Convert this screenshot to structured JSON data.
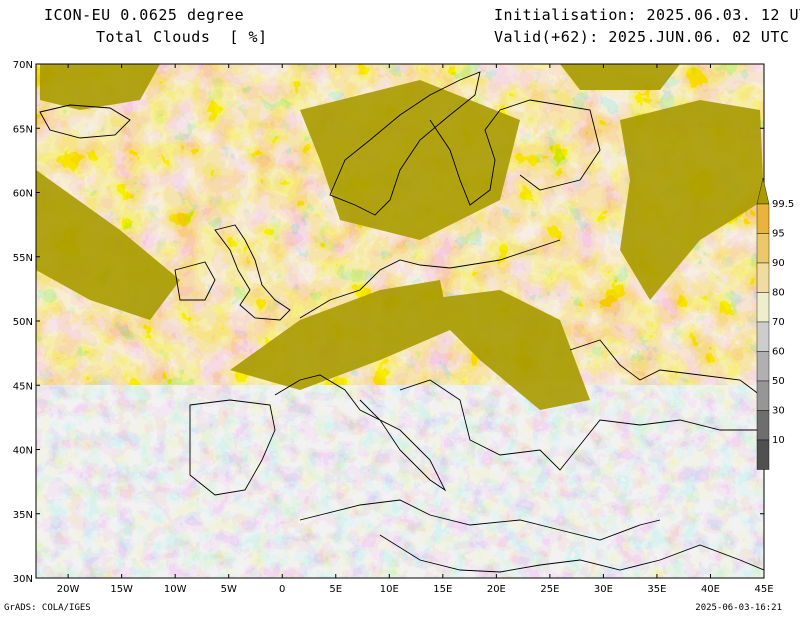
{
  "header": {
    "model": "ICON-EU 0.0625 degree",
    "field": "Total Clouds  [ %]",
    "init": "Initialisation: 2025.06.03. 12 UTC",
    "valid": "Valid(+62): 2025.JUN.06. 02 UTC"
  },
  "axes": {
    "lat_labels": [
      "70N",
      "65N",
      "60N",
      "55N",
      "50N",
      "45N",
      "40N",
      "35N",
      "30N"
    ],
    "lon_labels": [
      "20W",
      "15W",
      "10W",
      "5W",
      "0",
      "5E",
      "10E",
      "15E",
      "20E",
      "25E",
      "30E",
      "35E",
      "40E",
      "45E"
    ]
  },
  "legend": {
    "labels": [
      "99.5",
      "95",
      "90",
      "80",
      "70",
      "60",
      "50",
      "30",
      "10"
    ],
    "colors": [
      "#a89a00",
      "#e8b43c",
      "#ecc868",
      "#f0dca0",
      "#eeeecc",
      "#cdcdcd",
      "#b0b0b0",
      "#969696",
      "#6e6e6e",
      "#505050"
    ]
  },
  "map": {
    "lon_range": [
      -23,
      45
    ],
    "lat_range": [
      30,
      70
    ],
    "sea_clear_color": "#e3e3e3"
  },
  "footer": {
    "left": "GrADS: COLA/IGES",
    "right": "2025-06-03-16:21"
  }
}
